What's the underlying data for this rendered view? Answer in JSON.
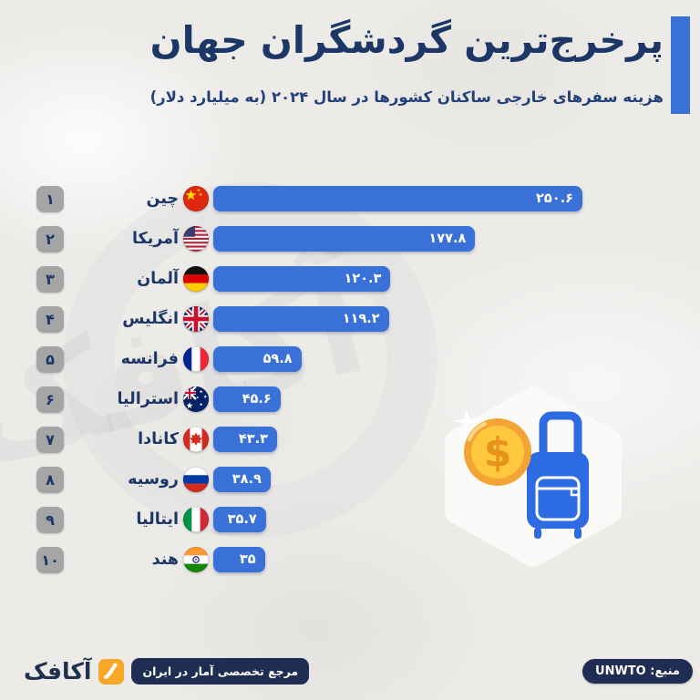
{
  "header": {
    "title": "پرخرج‌ترین گردشگران جهان",
    "subtitle": "هزینه سفرهای خارجی ساکنان کشورها در سال ۲۰۲۴ (به میلیارد دلار)"
  },
  "chart_data": {
    "type": "bar",
    "orientation": "horizontal",
    "title": "پرخرج‌ترین گردشگران جهان",
    "subtitle": "هزینه سفرهای خارجی ساکنان کشورها در سال ۲۰۲۴ (به میلیارد دلار)",
    "unit": "میلیارد دلار",
    "year": "۲۰۲۴",
    "xlim": [
      0,
      250.6
    ],
    "max_value": 250.6,
    "bar_color": "#3a71d9",
    "rows": [
      {
        "rank": 1,
        "rank_label": "۱",
        "country": "چین",
        "flag": "china",
        "value": 250.6,
        "value_label": "۲۵۰.۶"
      },
      {
        "rank": 2,
        "rank_label": "۲",
        "country": "آمریکا",
        "flag": "usa",
        "value": 177.8,
        "value_label": "۱۷۷.۸"
      },
      {
        "rank": 3,
        "rank_label": "۳",
        "country": "آلمان",
        "flag": "germany",
        "value": 120.3,
        "value_label": "۱۲۰.۳"
      },
      {
        "rank": 4,
        "rank_label": "۴",
        "country": "انگلیس",
        "flag": "uk",
        "value": 119.2,
        "value_label": "۱۱۹.۲"
      },
      {
        "rank": 5,
        "rank_label": "۵",
        "country": "فرانسه",
        "flag": "france",
        "value": 59.8,
        "value_label": "۵۹.۸"
      },
      {
        "rank": 6,
        "rank_label": "۶",
        "country": "استرالیا",
        "flag": "australia",
        "value": 45.6,
        "value_label": "۴۵.۶"
      },
      {
        "rank": 7,
        "rank_label": "۷",
        "country": "کانادا",
        "flag": "canada",
        "value": 43.3,
        "value_label": "۴۳.۳"
      },
      {
        "rank": 8,
        "rank_label": "۸",
        "country": "روسیه",
        "flag": "russia",
        "value": 38.9,
        "value_label": "۳۸.۹"
      },
      {
        "rank": 9,
        "rank_label": "۹",
        "country": "ایتالیا",
        "flag": "italy",
        "value": 35.7,
        "value_label": "۳۵.۷"
      },
      {
        "rank": 10,
        "rank_label": "۱۰",
        "country": "هند",
        "flag": "india",
        "value": 35,
        "value_label": "۳۵"
      }
    ]
  },
  "illustration": {
    "icons": [
      "dollar-coin-icon",
      "suitcase-icon",
      "sparkle-icon"
    ],
    "dollar_symbol": "$"
  },
  "watermark": {
    "text": "آکافک"
  },
  "footer": {
    "source_label": "منبع: UNWTO",
    "brand_name": "آکافک",
    "brand_tagline": "مرجع تخصصی آمار در ایران"
  },
  "colors": {
    "background": "#edebe8",
    "bar": "#3a71d9",
    "title": "#1c3766",
    "badge_bg": "#a5a5a5",
    "footer_pill": "#1f2d52",
    "brand_orange": "#f7a827",
    "coin_gold": "#ffc83d",
    "coin_rim": "#f3a434",
    "suitcase_blue": "#2c6be2"
  }
}
